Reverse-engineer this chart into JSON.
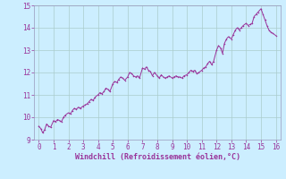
{
  "title": "",
  "xlabel": "Windchill (Refroidissement éolien,°C)",
  "ylabel": "",
  "xlim": [
    -0.3,
    16.3
  ],
  "ylim": [
    9,
    15
  ],
  "yticks": [
    9,
    10,
    11,
    12,
    13,
    14,
    15
  ],
  "xticks": [
    0,
    1,
    2,
    3,
    4,
    5,
    6,
    7,
    8,
    9,
    10,
    11,
    12,
    13,
    14,
    15,
    16
  ],
  "line_color": "#993399",
  "bg_color": "#cceeff",
  "grid_color": "#aacccc",
  "spine_color": "#9999bb",
  "x": [
    0.0,
    0.13,
    0.27,
    0.4,
    0.53,
    0.67,
    0.8,
    1.0,
    1.13,
    1.27,
    1.4,
    1.53,
    1.67,
    1.8,
    2.0,
    2.13,
    2.27,
    2.4,
    2.53,
    2.67,
    2.8,
    3.0,
    3.13,
    3.27,
    3.4,
    3.53,
    3.67,
    3.8,
    4.0,
    4.13,
    4.27,
    4.4,
    4.53,
    4.67,
    4.8,
    5.0,
    5.13,
    5.27,
    5.4,
    5.53,
    5.67,
    5.8,
    6.0,
    6.13,
    6.27,
    6.4,
    6.53,
    6.67,
    6.8,
    7.0,
    7.13,
    7.27,
    7.4,
    7.53,
    7.67,
    7.8,
    8.0,
    8.13,
    8.27,
    8.4,
    8.53,
    8.67,
    8.8,
    9.0,
    9.13,
    9.27,
    9.4,
    9.53,
    9.67,
    9.8,
    10.0,
    10.13,
    10.27,
    10.4,
    10.53,
    10.67,
    10.8,
    11.0,
    11.13,
    11.27,
    11.4,
    11.53,
    11.67,
    11.8,
    12.0,
    12.13,
    12.27,
    12.4,
    12.53,
    12.67,
    12.8,
    13.0,
    13.13,
    13.27,
    13.4,
    13.53,
    13.67,
    13.8,
    14.0,
    14.13,
    14.27,
    14.4,
    14.53,
    14.67,
    14.8,
    15.0,
    15.13,
    15.27,
    15.4,
    15.53,
    15.67,
    15.8,
    16.0
  ],
  "y": [
    9.6,
    9.5,
    9.3,
    9.45,
    9.7,
    9.6,
    9.55,
    9.85,
    9.8,
    9.9,
    9.85,
    9.8,
    10.0,
    10.1,
    10.2,
    10.15,
    10.3,
    10.4,
    10.35,
    10.45,
    10.4,
    10.5,
    10.55,
    10.6,
    10.7,
    10.8,
    10.75,
    10.9,
    11.0,
    11.1,
    11.05,
    11.15,
    11.3,
    11.25,
    11.15,
    11.5,
    11.6,
    11.55,
    11.7,
    11.8,
    11.75,
    11.65,
    11.8,
    12.0,
    11.95,
    11.85,
    11.8,
    11.85,
    11.75,
    12.2,
    12.15,
    12.25,
    12.1,
    12.05,
    11.85,
    12.0,
    11.85,
    11.75,
    11.9,
    11.8,
    11.75,
    11.8,
    11.85,
    11.75,
    11.8,
    11.85,
    11.8,
    11.8,
    11.75,
    11.85,
    11.9,
    12.0,
    12.1,
    12.05,
    12.1,
    11.95,
    12.0,
    12.1,
    12.2,
    12.25,
    12.4,
    12.5,
    12.35,
    12.5,
    13.0,
    13.2,
    13.1,
    12.85,
    13.3,
    13.5,
    13.6,
    13.5,
    13.7,
    13.9,
    14.0,
    13.9,
    14.0,
    14.1,
    14.2,
    14.1,
    14.15,
    14.2,
    14.5,
    14.6,
    14.7,
    14.85,
    14.6,
    14.35,
    14.1,
    13.9,
    13.8,
    13.75,
    13.65
  ]
}
